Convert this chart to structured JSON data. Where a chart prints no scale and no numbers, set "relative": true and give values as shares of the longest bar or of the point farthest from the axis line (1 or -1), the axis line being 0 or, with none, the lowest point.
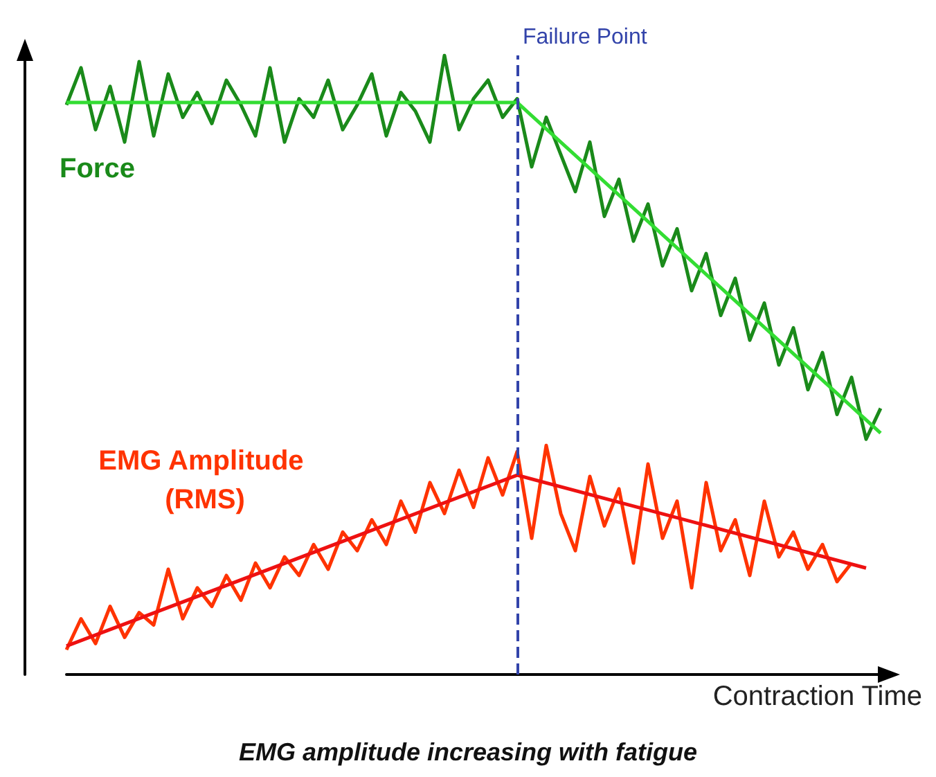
{
  "chart_data": {
    "type": "line",
    "relative": true,
    "title": "EMG amplitude increasing with fatigue",
    "xlabel": "Contraction Time",
    "categories": [
      null,
      null,
      null,
      null,
      null,
      null,
      null,
      null,
      null,
      null,
      null,
      null,
      null,
      null,
      null,
      null,
      null,
      null,
      null,
      null,
      null,
      null,
      null,
      null,
      null,
      null,
      null,
      null,
      null,
      null,
      null,
      null,
      null,
      null,
      null,
      null,
      null,
      null,
      null,
      null,
      null,
      null,
      null,
      null,
      null,
      null,
      null,
      null,
      null,
      null,
      null,
      null,
      null,
      null,
      null,
      null,
      null
    ],
    "tick_labels": false,
    "grid": false,
    "legend": false,
    "marker": "none",
    "series": [
      {
        "name": "Force",
        "color": "#1a8a1a",
        "values": [
          0.92,
          0.98,
          0.88,
          0.95,
          0.86,
          0.99,
          0.87,
          0.97,
          0.9,
          0.94,
          0.89,
          0.96,
          0.92,
          0.87,
          0.98,
          0.86,
          0.93,
          0.9,
          0.96,
          0.88,
          0.92,
          0.97,
          0.87,
          0.94,
          0.91,
          0.86,
          1.0,
          0.88,
          0.93,
          0.96,
          0.9,
          0.93,
          0.82,
          0.9,
          0.84,
          0.78,
          0.86,
          0.74,
          0.8,
          0.7,
          0.76,
          0.66,
          0.72,
          0.62,
          0.68,
          0.58,
          0.64,
          0.54,
          0.6,
          0.5,
          0.56,
          0.46,
          0.52,
          0.42,
          0.48,
          0.38,
          0.43
        ]
      },
      {
        "color": "#33dd33",
        "values": [
          0.924,
          null,
          null,
          null,
          null,
          null,
          null,
          null,
          null,
          null,
          null,
          null,
          null,
          null,
          null,
          null,
          null,
          null,
          null,
          null,
          null,
          null,
          null,
          null,
          null,
          null,
          null,
          null,
          null,
          null,
          null,
          0.924,
          null,
          null,
          null,
          null,
          null,
          null,
          null,
          null,
          null,
          null,
          null,
          null,
          null,
          null,
          null,
          null,
          null,
          null,
          null,
          null,
          null,
          null,
          null,
          null,
          0.39
        ]
      },
      {
        "name": "EMG Amplitude (RMS)",
        "color": "#ff3300",
        "values": [
          0.04,
          0.09,
          0.05,
          0.11,
          0.06,
          0.1,
          0.08,
          0.17,
          0.09,
          0.14,
          0.11,
          0.16,
          0.12,
          0.18,
          0.14,
          0.19,
          0.16,
          0.21,
          0.17,
          0.23,
          0.2,
          0.25,
          0.21,
          0.28,
          0.23,
          0.31,
          0.26,
          0.33,
          0.27,
          0.35,
          0.29,
          0.36,
          0.22,
          0.37,
          0.26,
          0.2,
          0.32,
          0.24,
          0.3,
          0.18,
          0.34,
          0.22,
          0.28,
          0.14,
          0.31,
          0.2,
          0.25,
          0.16,
          0.28,
          0.19,
          0.23,
          0.17,
          0.21,
          0.15,
          0.18,
          null,
          null
        ]
      },
      {
        "color": "#ee1111",
        "values": [
          0.046,
          null,
          null,
          null,
          null,
          null,
          null,
          null,
          null,
          null,
          null,
          null,
          null,
          null,
          null,
          null,
          null,
          null,
          null,
          null,
          null,
          null,
          null,
          null,
          null,
          null,
          null,
          null,
          null,
          null,
          null,
          0.322,
          null,
          null,
          null,
          null,
          null,
          null,
          null,
          null,
          null,
          null,
          null,
          null,
          null,
          null,
          null,
          null,
          null,
          null,
          null,
          null,
          null,
          null,
          null,
          0.172,
          null
        ]
      }
    ],
    "ref_lines": [
      {
        "axis": "x",
        "label": "Failure Point",
        "color": "#3344aa",
        "line_style": "dashed"
      }
    ]
  }
}
